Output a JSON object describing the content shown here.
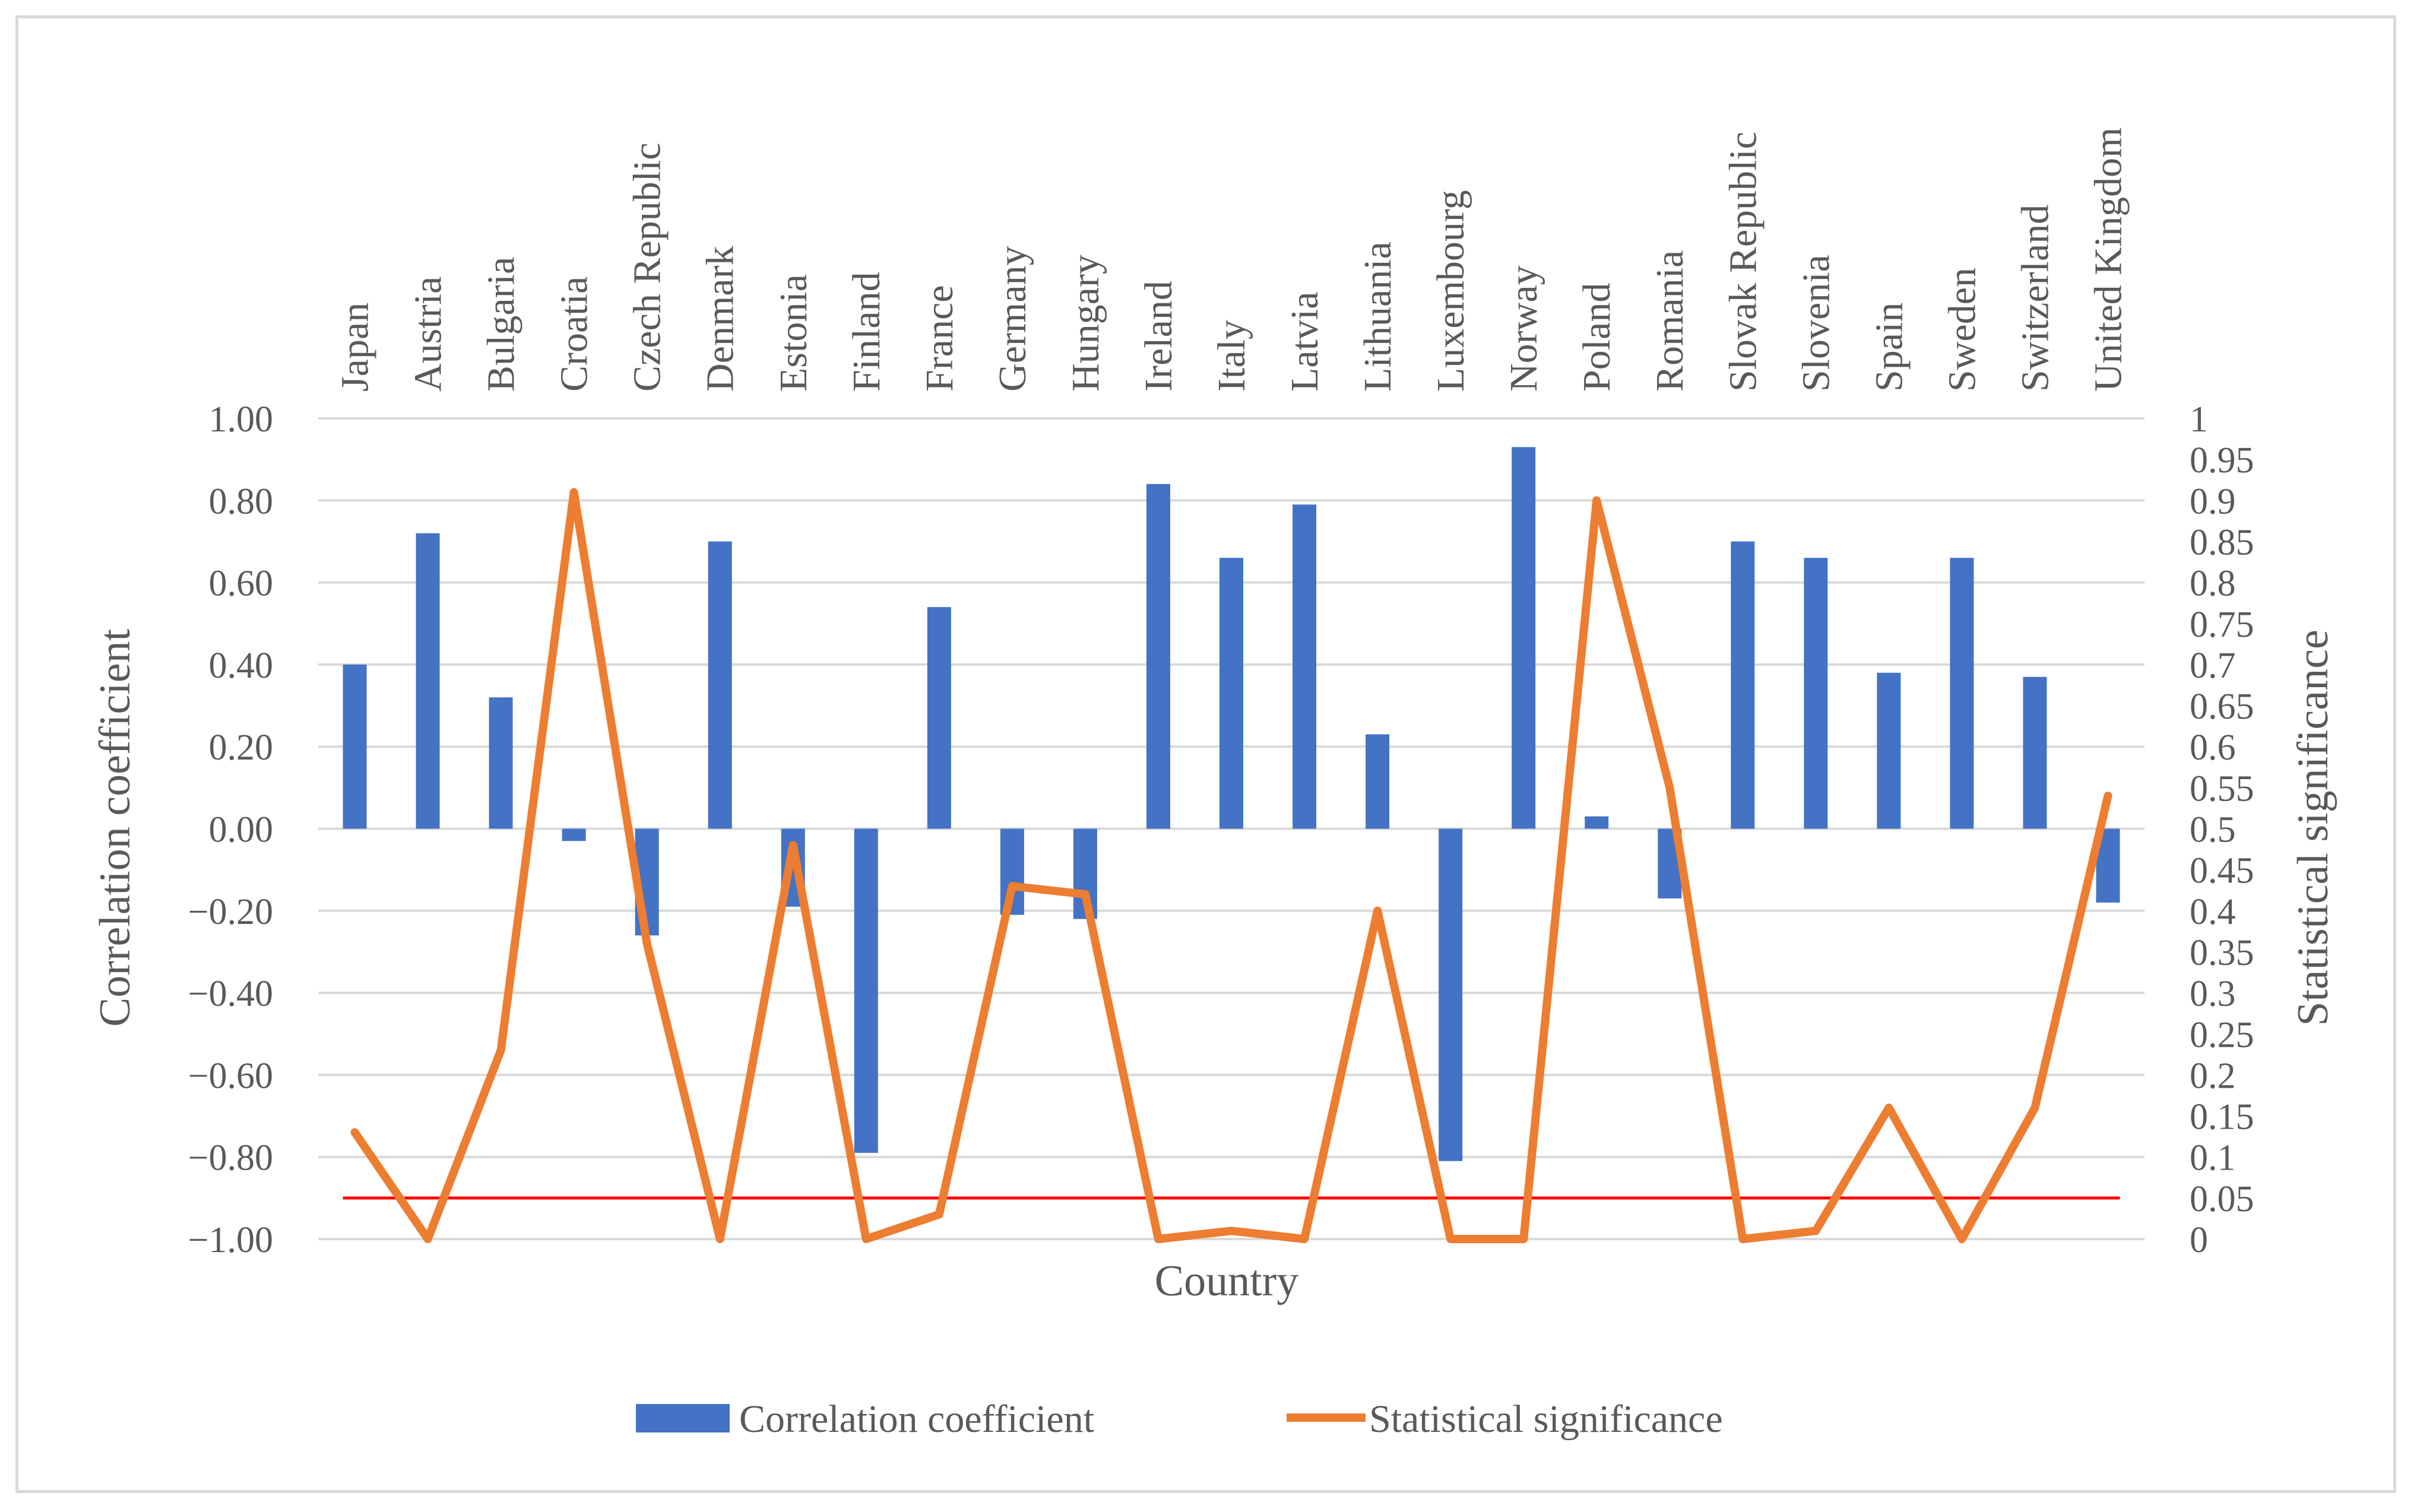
{
  "chart_data": {
    "type": "bar",
    "categories": [
      "Japan",
      "Austria",
      "Bulgaria",
      "Croatia",
      "Czech Republic",
      "Denmark",
      "Estonia",
      "Finland",
      "France",
      "Germany",
      "Hungary",
      "Ireland",
      "Italy",
      "Latvia",
      "Lithuania",
      "Luxembourg",
      "Norway",
      "Poland",
      "Romania",
      "Slovak Republic",
      "Slovenia",
      "Spain",
      "Sweden",
      "Switzerland",
      "United Kingdom"
    ],
    "series": [
      {
        "name": "Correlation coefficient",
        "type": "bar",
        "axis": "left",
        "color": "#4472c4",
        "values": [
          0.4,
          0.72,
          0.32,
          -0.03,
          -0.26,
          0.7,
          -0.19,
          -0.79,
          0.54,
          -0.21,
          -0.22,
          0.84,
          0.66,
          0.79,
          0.23,
          -0.81,
          0.93,
          0.03,
          -0.17,
          0.7,
          0.66,
          0.38,
          0.66,
          0.37,
          -0.18
        ]
      },
      {
        "name": "Statistical significance",
        "type": "line",
        "axis": "right",
        "color": "#ed7d31",
        "values": [
          0.13,
          0.0,
          0.23,
          0.91,
          0.36,
          0.0,
          0.48,
          0.0,
          0.03,
          0.43,
          0.42,
          0.0,
          0.01,
          0.0,
          0.4,
          0.0,
          0.0,
          0.9,
          0.55,
          0.0,
          0.01,
          0.16,
          0.0,
          0.16,
          0.54
        ]
      }
    ],
    "threshold": {
      "value": 0.05,
      "axis": "right",
      "color": "#ff0000"
    },
    "xlabel": "Country",
    "ylabel": "Correlation coefficient",
    "y2label": "Statistical significance",
    "ylim": [
      -1.0,
      1.0
    ],
    "y2lim": [
      0,
      1
    ],
    "left_ticks": [
      "1.00",
      "0.80",
      "0.60",
      "0.40",
      "0.20",
      "0.00",
      "−0.20",
      "−0.40",
      "−0.60",
      "−0.80",
      "−1.00"
    ],
    "right_ticks": [
      "1",
      "0.95",
      "0.9",
      "0.85",
      "0.8",
      "0.75",
      "0.7",
      "0.65",
      "0.6",
      "0.55",
      "0.5",
      "0.45",
      "0.4",
      "0.35",
      "0.3",
      "0.25",
      "0.2",
      "0.15",
      "0.1",
      "0.05",
      "0"
    ],
    "legend_position": "bottom",
    "grid": true
  }
}
